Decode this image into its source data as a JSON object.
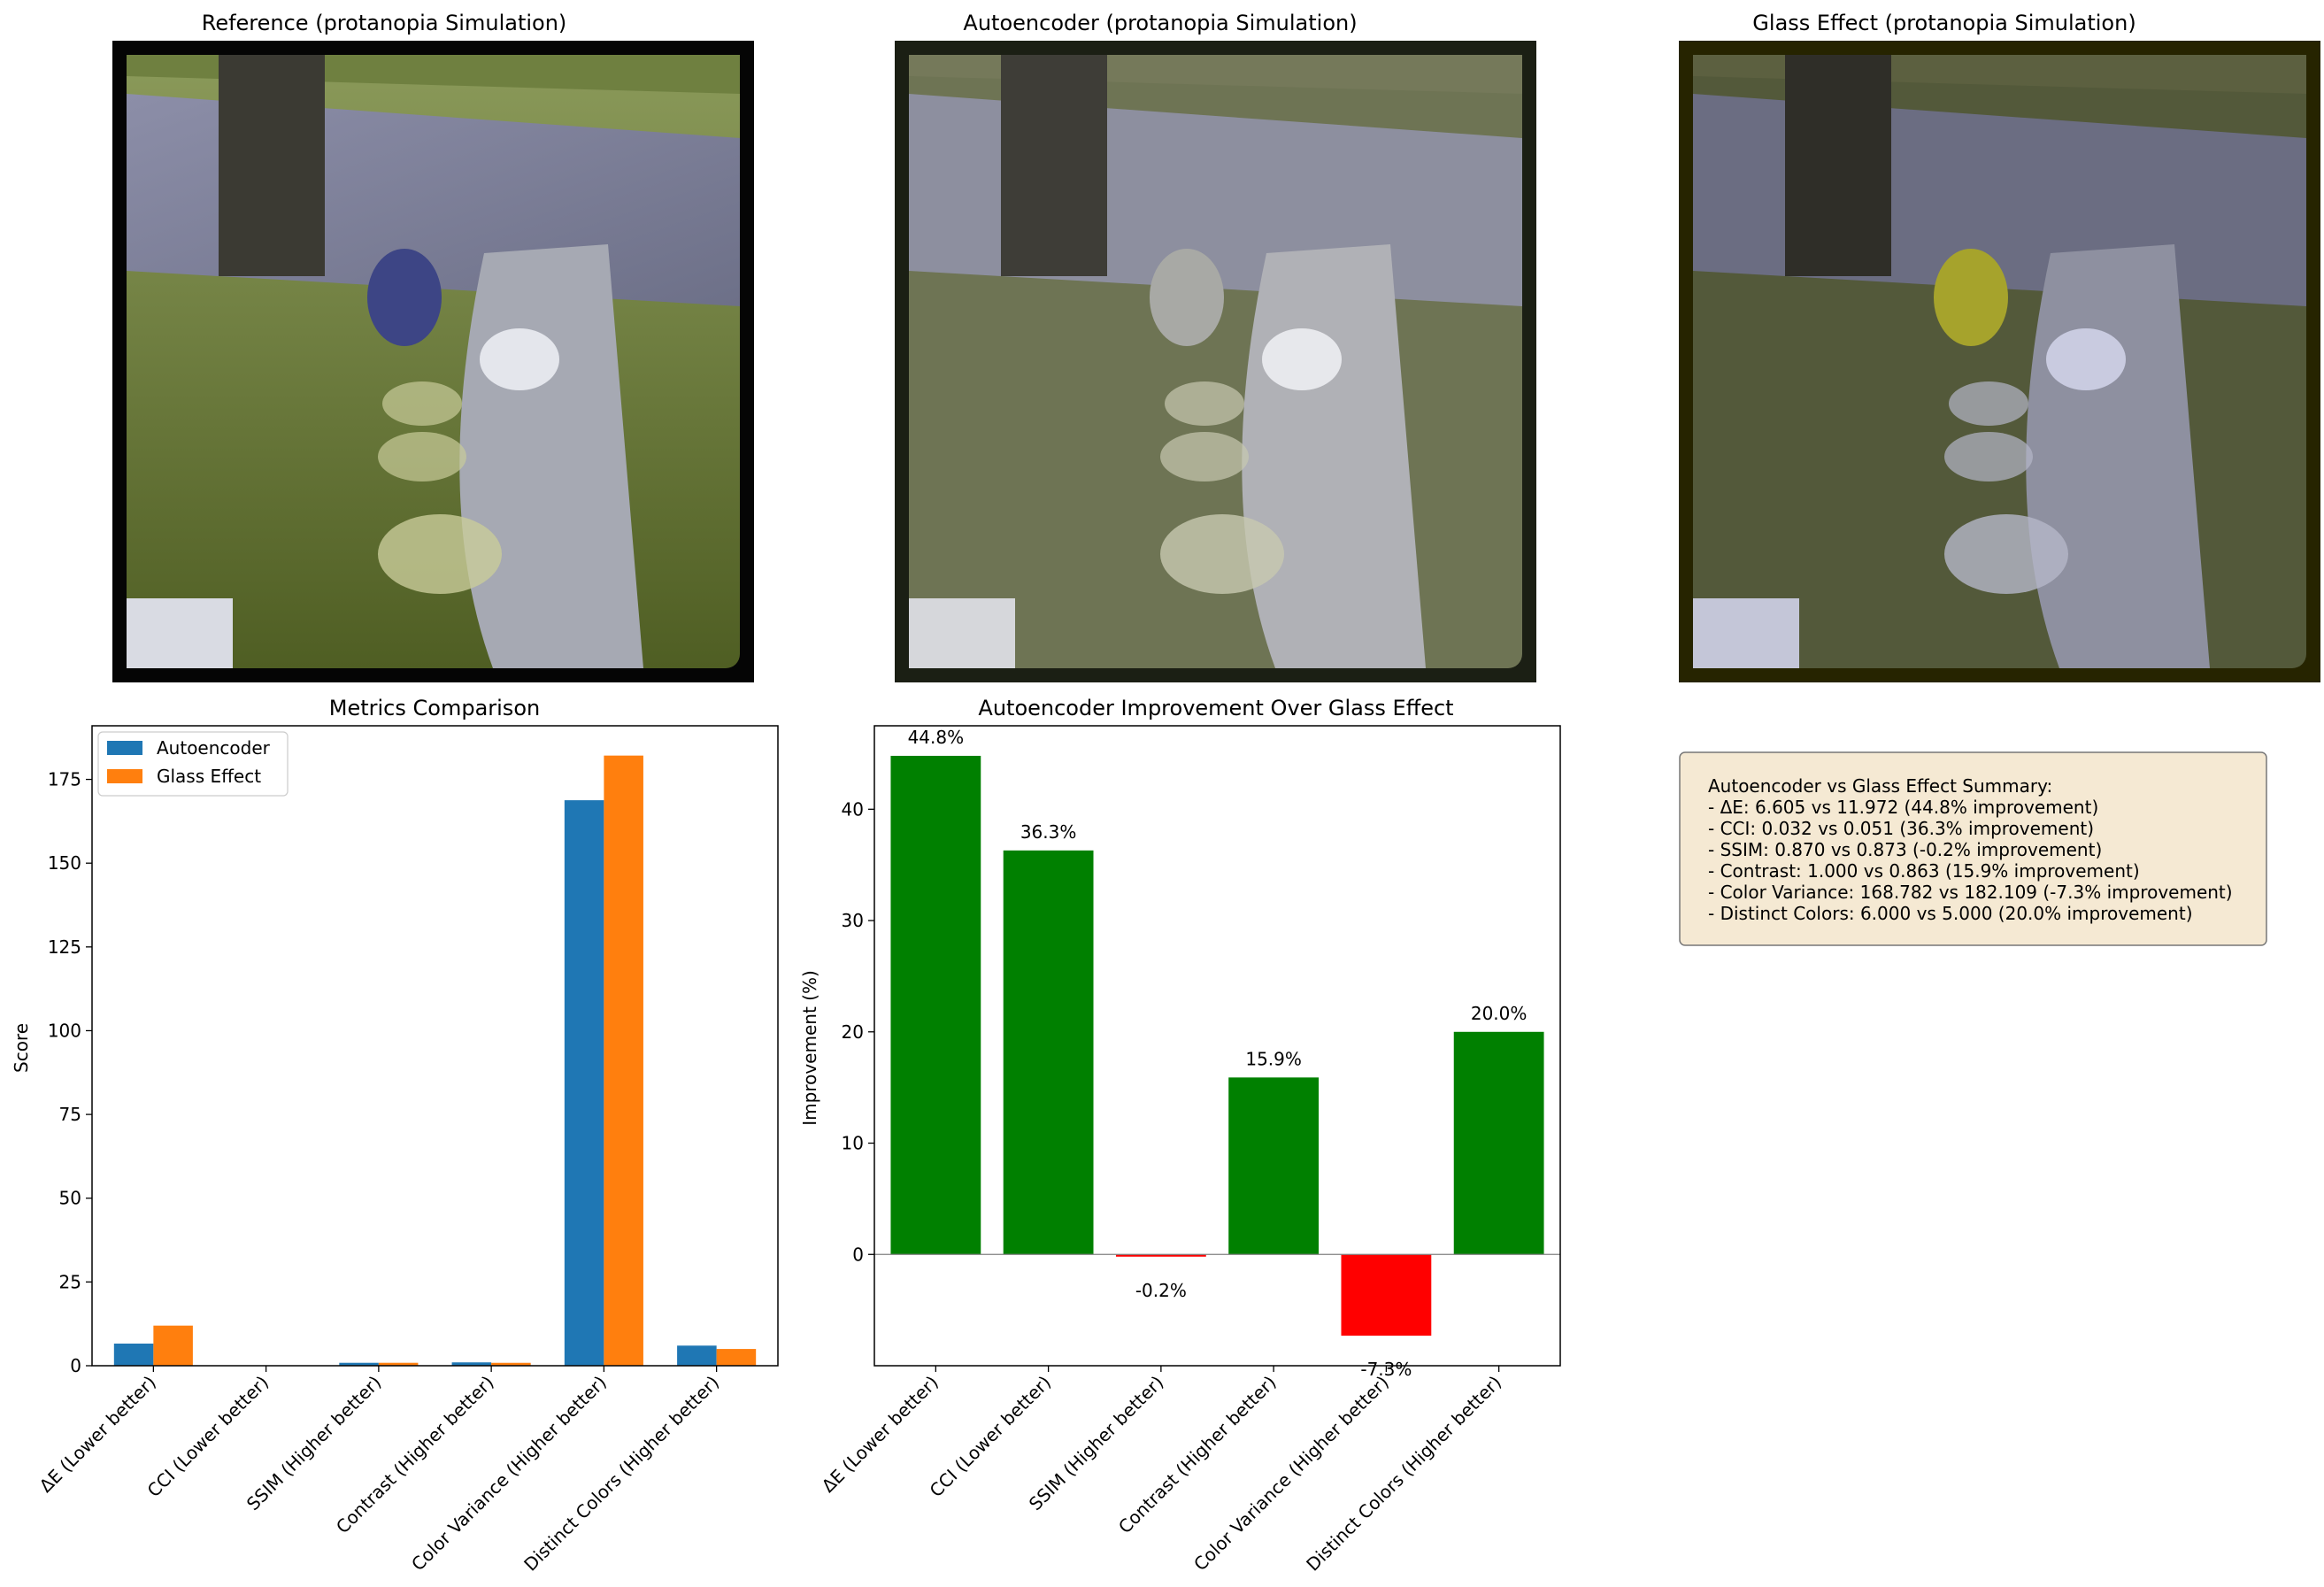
{
  "images": [
    {
      "title": "Reference (protanopia Simulation)",
      "frame_color": "#050505",
      "tint": "#6a7f3a"
    },
    {
      "title": "Autoencoder (protanopia Simulation)",
      "frame_color": "#1b1f14",
      "tint": "#7c8166"
    },
    {
      "title": "Glass Effect (protanopia Simulation)",
      "frame_color": "#262400",
      "tint": "#5b5d3a"
    }
  ],
  "chart_data": [
    {
      "type": "bar",
      "title": "Metrics Comparison",
      "xlabel": "",
      "ylabel": "Score",
      "categories": [
        "ΔE (Lower better)",
        "CCI (Lower better)",
        "SSIM (Higher better)",
        "Contrast (Higher better)",
        "Color Variance (Higher better)",
        "Distinct Colors (Higher better)"
      ],
      "series": [
        {
          "name": "Autoencoder",
          "color": "#1f77b4",
          "values": [
            6.605,
            0.032,
            0.87,
            1.0,
            168.782,
            6.0
          ]
        },
        {
          "name": "Glass Effect",
          "color": "#ff7f0e",
          "values": [
            11.972,
            0.051,
            0.873,
            0.863,
            182.109,
            5.0
          ]
        }
      ],
      "ylim": [
        0,
        191
      ],
      "yticks": [
        0,
        25,
        50,
        75,
        100,
        125,
        150,
        175
      ],
      "legend": "top-left",
      "grid": false
    },
    {
      "type": "bar",
      "title": "Autoencoder Improvement Over Glass Effect",
      "xlabel": "",
      "ylabel": "Improvement (%)",
      "categories": [
        "ΔE (Lower better)",
        "CCI (Lower better)",
        "SSIM (Higher better)",
        "Contrast (Higher better)",
        "Color Variance (Higher better)",
        "Distinct Colors (Higher better)"
      ],
      "values": [
        44.8,
        36.3,
        -0.2,
        15.9,
        -7.3,
        20.0
      ],
      "labels": [
        "44.8%",
        "36.3%",
        "-0.2%",
        "15.9%",
        "-7.3%",
        "20.0%"
      ],
      "positive_color": "#008000",
      "negative_color": "#ff0000",
      "ylim": [
        -10,
        47.5
      ],
      "yticks": [
        0,
        10,
        20,
        30,
        40
      ],
      "grid": false
    }
  ],
  "summary": {
    "lines": [
      "Autoencoder vs Glass Effect Summary:",
      "- ΔE: 6.605 vs 11.972 (44.8% improvement)",
      "- CCI: 0.032 vs 0.051 (36.3% improvement)",
      "- SSIM: 0.870 vs 0.873 (-0.2% improvement)",
      "- Contrast: 1.000 vs 0.863 (15.9% improvement)",
      "- Color Variance: 168.782 vs 182.109 (-7.3% improvement)",
      "- Distinct Colors: 6.000 vs 5.000 (20.0% improvement)"
    ],
    "background": "#f5e9d3"
  }
}
